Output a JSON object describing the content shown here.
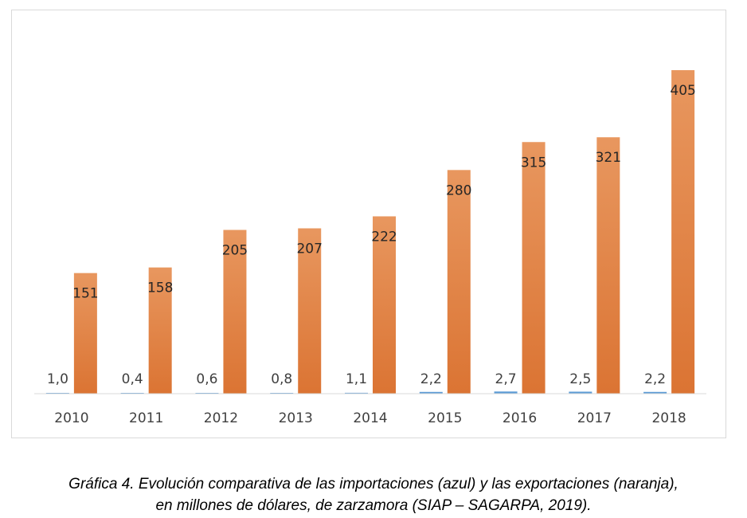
{
  "chart_data": {
    "type": "bar",
    "title": "",
    "xlabel": "",
    "ylabel": "",
    "ylim": [
      0,
      420
    ],
    "grid": false,
    "legend": "none",
    "categories": [
      "2010",
      "2011",
      "2012",
      "2013",
      "2014",
      "2015",
      "2016",
      "2017",
      "2018"
    ],
    "series": [
      {
        "name": "Importaciones (azul)",
        "color": "#5b9bd5",
        "values": [
          1.0,
          0.4,
          0.6,
          0.8,
          1.1,
          2.2,
          2.7,
          2.5,
          2.2
        ],
        "labels": [
          "1,0",
          "0,4",
          "0,6",
          "0,8",
          "1,1",
          "2,2",
          "2,7",
          "2,5",
          "2,2"
        ]
      },
      {
        "name": "Exportaciones (naranja)",
        "color": "#e07b35",
        "values": [
          151,
          158,
          205,
          207,
          222,
          280,
          315,
          321,
          405
        ],
        "labels": [
          "151",
          "158",
          "205",
          "207",
          "222",
          "280",
          "315",
          "321",
          "405"
        ]
      }
    ]
  },
  "caption": {
    "line1": "Gráfica 4. Evolución comparativa de las importaciones (azul) y las exportaciones (naranja),",
    "line2": "en millones de dólares, de zarzamora (SIAP – SAGARPA, 2019)."
  }
}
